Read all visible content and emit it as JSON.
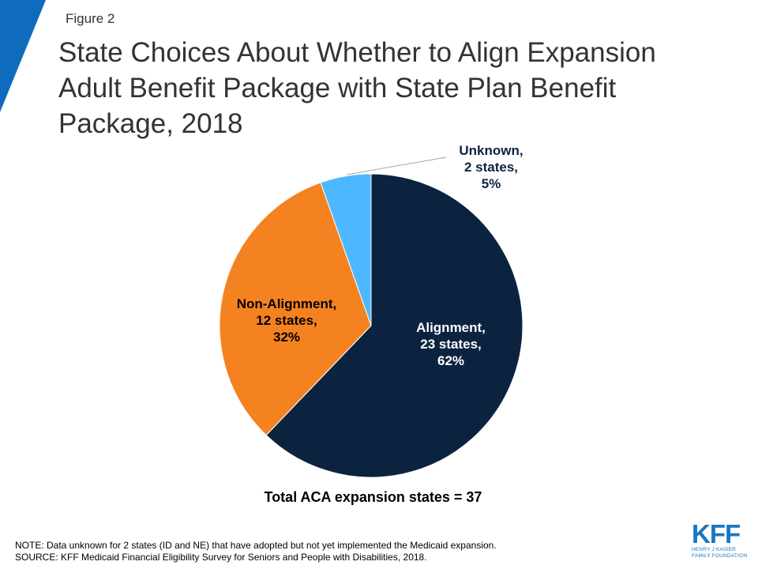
{
  "figure_label": "Figure 2",
  "title": "State Choices About Whether to Align Expansion Adult Benefit Package with State Plan Benefit Package, 2018",
  "total_label": "Total ACA expansion states = 37",
  "note": "NOTE:  Data unknown for 2 states (ID and NE) that have adopted but not yet implemented the Medicaid expansion.",
  "source": "SOURCE: KFF Medicaid Financial Eligibility Survey for Seniors and People with Disabilities, 2018.",
  "logo": {
    "mark": "KFF",
    "line1": "HENRY J KAISER",
    "line2": "FAMILY FOUNDATION"
  },
  "colors": {
    "accent": "#0f6cbd",
    "alignment": "#0c2340",
    "non_alignment": "#f58220",
    "unknown": "#4db8ff"
  },
  "chart_data": {
    "type": "pie",
    "title": "State Choices About Whether to Align Expansion Adult Benefit Package with State Plan Benefit Package, 2018",
    "slices": [
      {
        "category": "Alignment",
        "states": 23,
        "percent": 62,
        "color": "#0c2340",
        "label_lines": [
          "Alignment,",
          "23 states,",
          "62%"
        ]
      },
      {
        "category": "Non-Alignment",
        "states": 12,
        "percent": 32,
        "color": "#f58220",
        "label_lines": [
          "Non-Alignment,",
          "12 states,",
          "32%"
        ]
      },
      {
        "category": "Unknown",
        "states": 2,
        "percent": 5,
        "color": "#4db8ff",
        "label_lines": [
          "Unknown,",
          "2 states,",
          "5%"
        ]
      }
    ],
    "start_angle_deg": 0,
    "direction": "clockwise",
    "legend": "none"
  }
}
